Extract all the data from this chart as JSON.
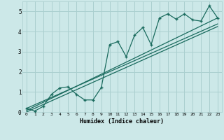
{
  "xlabel": "Humidex (Indice chaleur)",
  "ylabel": "",
  "bg_color": "#cce8e8",
  "grid_color": "#aacfcf",
  "line_color": "#1a6b5e",
  "xlim": [
    -0.5,
    23.5
  ],
  "ylim": [
    0,
    5.5
  ],
  "xticks": [
    0,
    1,
    2,
    3,
    4,
    5,
    6,
    7,
    8,
    9,
    10,
    11,
    12,
    13,
    14,
    15,
    16,
    17,
    18,
    19,
    20,
    21,
    22,
    23
  ],
  "yticks": [
    0,
    1,
    2,
    3,
    4,
    5
  ],
  "data_x": [
    0,
    1,
    2,
    3,
    4,
    5,
    6,
    7,
    8,
    9,
    10,
    11,
    12,
    13,
    14,
    15,
    16,
    17,
    18,
    19,
    20,
    21,
    22,
    23
  ],
  "data_y": [
    0.18,
    0.05,
    0.28,
    0.88,
    1.2,
    1.25,
    0.88,
    0.6,
    0.6,
    1.22,
    3.35,
    3.5,
    2.75,
    3.82,
    4.2,
    3.35,
    4.68,
    4.88,
    4.62,
    4.88,
    4.58,
    4.52,
    5.28,
    4.68
  ],
  "trend1_x": [
    0,
    23
  ],
  "trend1_y": [
    0.08,
    4.68
  ],
  "trend2_x": [
    0,
    23
  ],
  "trend2_y": [
    0.18,
    4.38
  ],
  "trend3_x": [
    0,
    23
  ],
  "trend3_y": [
    0.0,
    4.25
  ]
}
